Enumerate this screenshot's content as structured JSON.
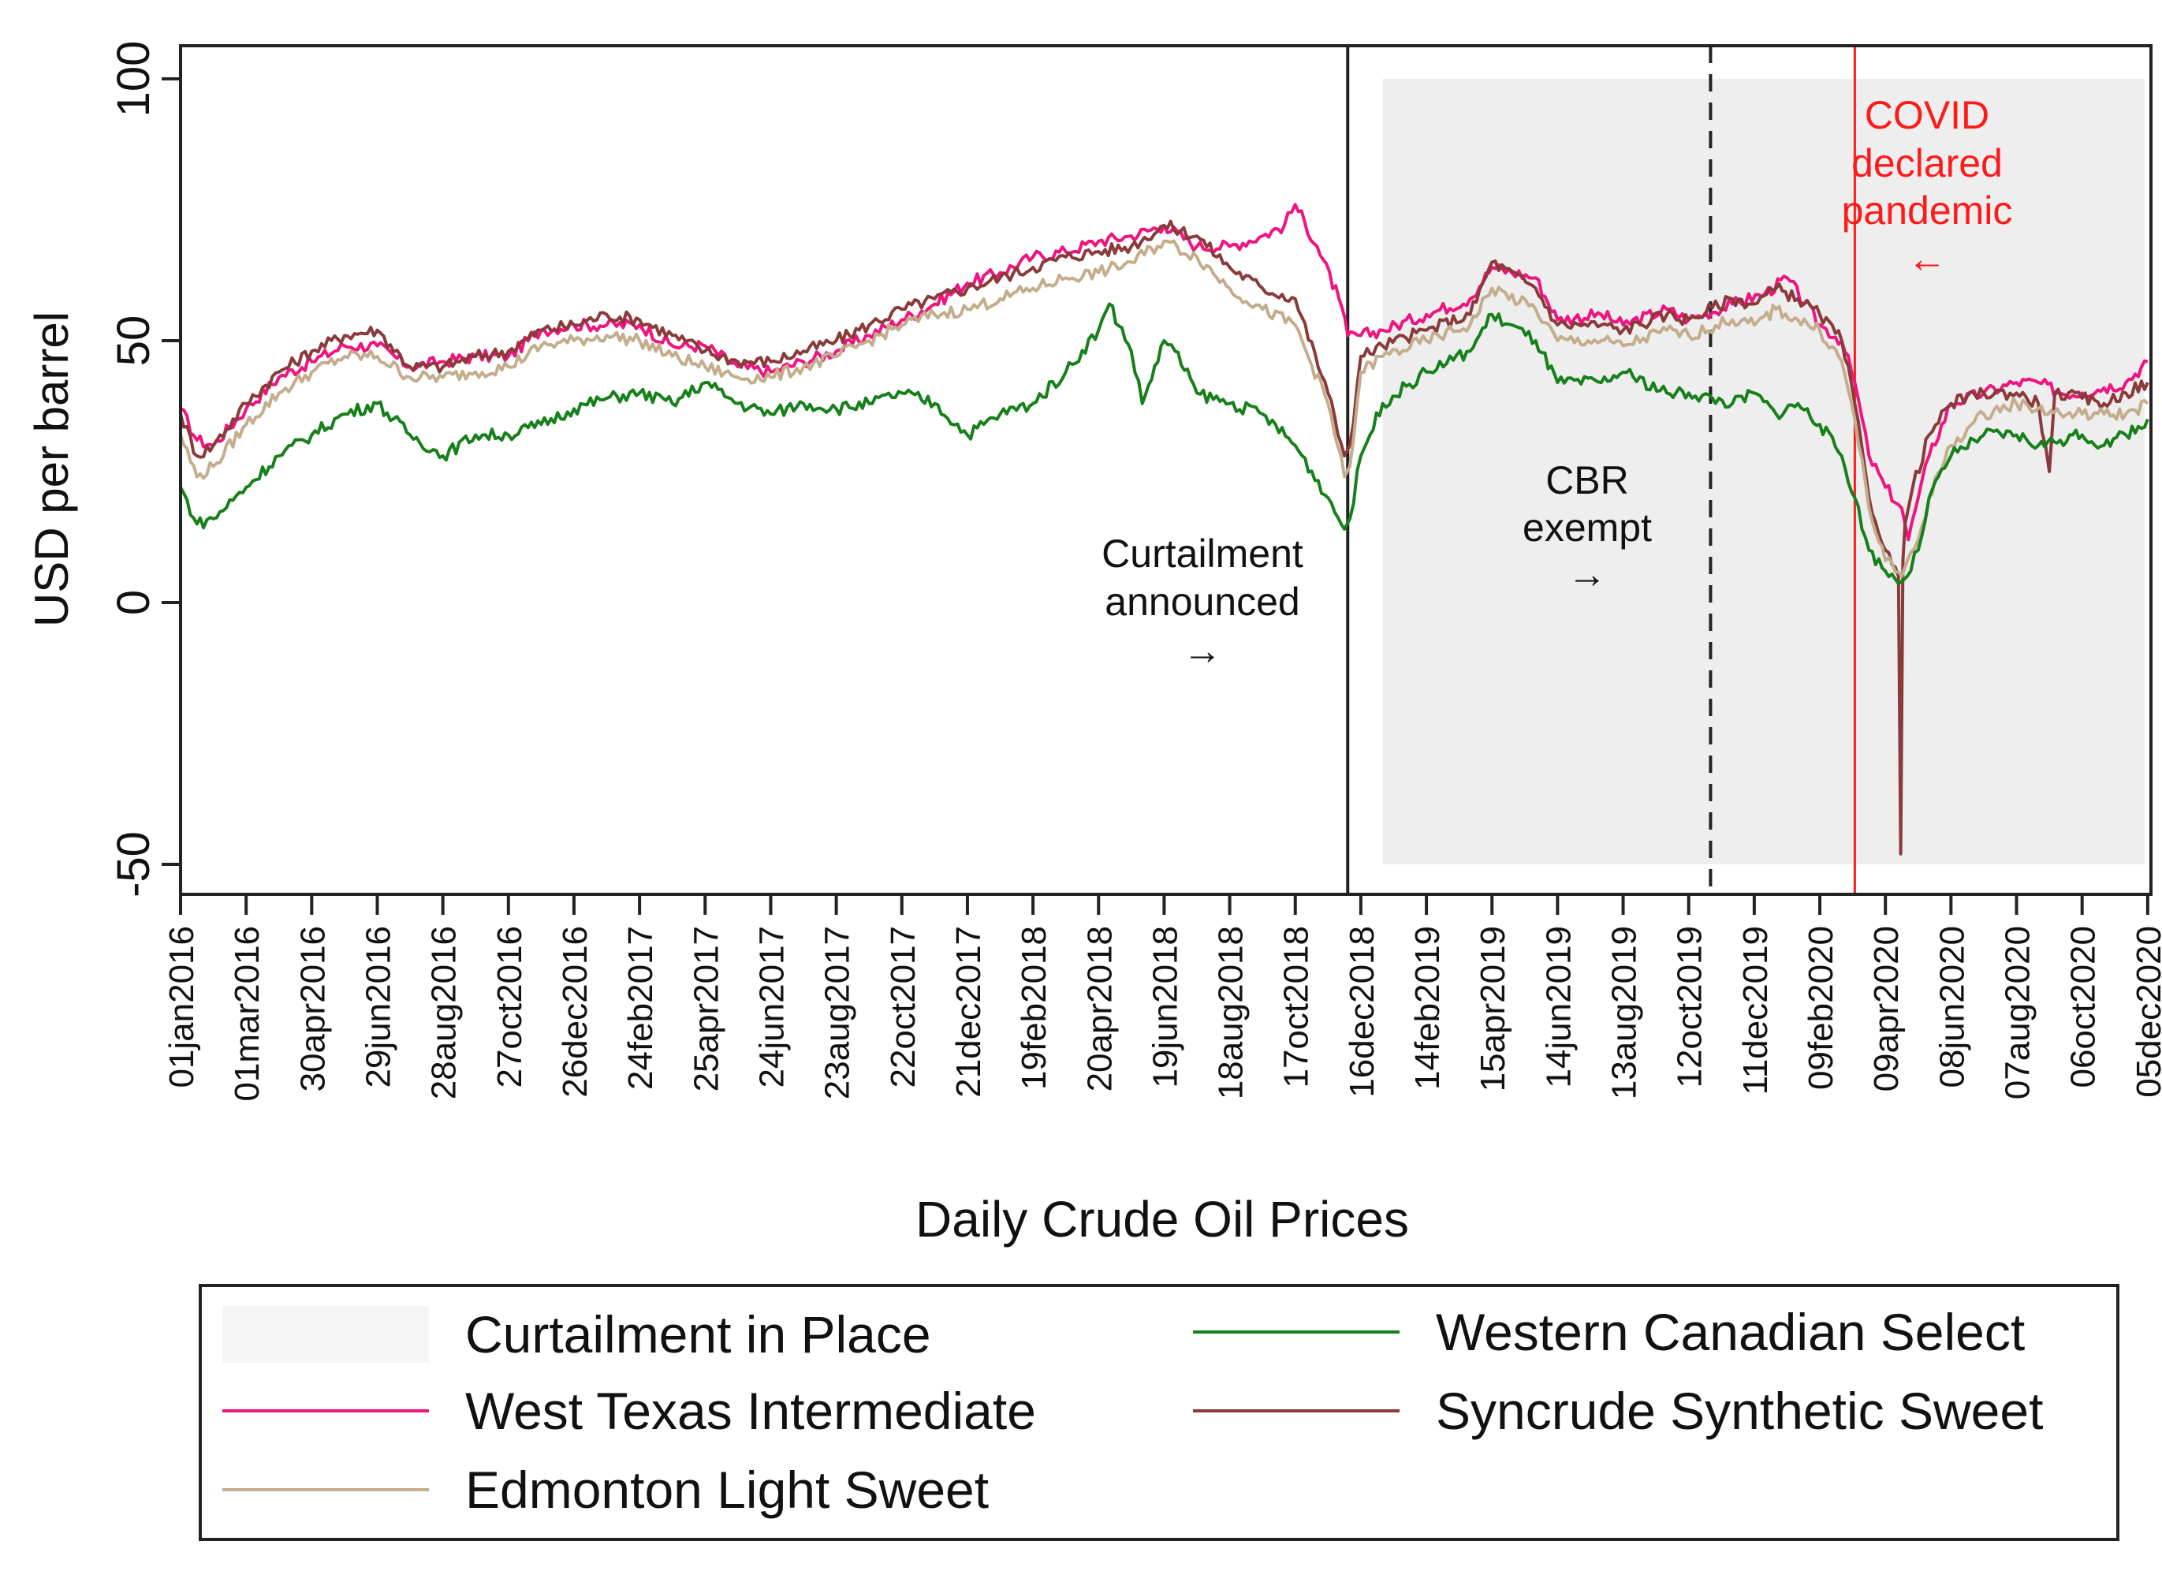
{
  "colors": {
    "wti": "#f0147f",
    "wcs": "#16801a",
    "syncrude": "#8b3a3a",
    "edmonton": "#c4ad8c",
    "covid": "#ff1a1a",
    "shade": "#eeeeee",
    "axis": "#222222"
  },
  "chart_data": {
    "type": "line",
    "title": "",
    "xlabel": "Daily Crude Oil Prices",
    "ylabel": "USD per barrel",
    "ylim": [
      -50,
      100
    ],
    "yticks": [
      "-50",
      "0",
      "50",
      "100"
    ],
    "x_range_days": [
      0,
      1803
    ],
    "xticks": [
      {
        "label": "01jan2016",
        "day": 0
      },
      {
        "label": "01mar2016",
        "day": 60
      },
      {
        "label": "30apr2016",
        "day": 120
      },
      {
        "label": "29jun2016",
        "day": 180
      },
      {
        "label": "28aug2016",
        "day": 240
      },
      {
        "label": "27oct2016",
        "day": 300
      },
      {
        "label": "26dec2016",
        "day": 360
      },
      {
        "label": "24feb2017",
        "day": 420
      },
      {
        "label": "25apr2017",
        "day": 480
      },
      {
        "label": "24jun2017",
        "day": 540
      },
      {
        "label": "23aug2017",
        "day": 600
      },
      {
        "label": "22oct2017",
        "day": 660
      },
      {
        "label": "21dec2017",
        "day": 720
      },
      {
        "label": "19feb2018",
        "day": 780
      },
      {
        "label": "20apr2018",
        "day": 840
      },
      {
        "label": "19jun2018",
        "day": 900
      },
      {
        "label": "18aug2018",
        "day": 960
      },
      {
        "label": "17oct2018",
        "day": 1020
      },
      {
        "label": "16dec2018",
        "day": 1080
      },
      {
        "label": "14feb2019",
        "day": 1140
      },
      {
        "label": "15apr2019",
        "day": 1200
      },
      {
        "label": "14jun2019",
        "day": 1260
      },
      {
        "label": "13aug2019",
        "day": 1320
      },
      {
        "label": "12oct2019",
        "day": 1380
      },
      {
        "label": "11dec2019",
        "day": 1440
      },
      {
        "label": "09feb2020",
        "day": 1500
      },
      {
        "label": "09apr2020",
        "day": 1560
      },
      {
        "label": "08jun2020",
        "day": 1620
      },
      {
        "label": "07aug2020",
        "day": 1680
      },
      {
        "label": "06oct2020",
        "day": 1740
      },
      {
        "label": "05dec2020",
        "day": 1800
      }
    ],
    "shaded_region": {
      "label": "Curtailment in Place",
      "x_start_day": 1100,
      "x_end_day": 1797,
      "y_range": [
        -50,
        100
      ]
    },
    "vertical_lines": [
      {
        "name": "curtailment",
        "day": 1068,
        "style": "solid",
        "color": "#222222"
      },
      {
        "name": "cbr",
        "day": 1400,
        "style": "dashed",
        "color": "#222222"
      },
      {
        "name": "covid",
        "day": 1532,
        "style": "solid",
        "color": "#ff1a1a"
      }
    ],
    "annotations": [
      {
        "lines": [
          "Curtailment",
          "announced"
        ],
        "arrow": "→",
        "color": "#111111"
      },
      {
        "lines": [
          "CBR",
          "exempt"
        ],
        "arrow": "→",
        "color": "#111111"
      },
      {
        "lines": [
          "COVID",
          "declared",
          "pandemic"
        ],
        "arrow": "←",
        "color": "#ff1a1a"
      }
    ],
    "series": [
      {
        "key": "wti",
        "name": "West Texas Intermediate",
        "x": [
          0,
          15,
          30,
          60,
          90,
          120,
          150,
          180,
          210,
          240,
          270,
          300,
          330,
          360,
          390,
          420,
          450,
          480,
          510,
          540,
          570,
          600,
          630,
          660,
          690,
          720,
          750,
          780,
          810,
          840,
          870,
          900,
          930,
          960,
          990,
          1010,
          1020,
          1040,
          1060,
          1068,
          1080,
          1100,
          1140,
          1180,
          1200,
          1240,
          1260,
          1300,
          1320,
          1360,
          1380,
          1420,
          1450,
          1470,
          1500,
          1520,
          1532,
          1545,
          1560,
          1575,
          1581,
          1590,
          1600,
          1620,
          1650,
          1680,
          1700,
          1720,
          1740,
          1760,
          1780,
          1800
        ],
        "values": [
          37,
          31,
          30,
          37,
          43,
          46,
          49,
          49,
          45,
          46,
          47,
          47,
          52,
          53,
          53,
          53,
          49,
          49,
          45,
          44,
          46,
          48,
          51,
          54,
          57,
          61,
          63,
          66,
          67,
          69,
          70,
          72,
          68,
          68,
          70,
          72,
          76,
          68,
          58,
          51,
          51,
          52,
          55,
          58,
          64,
          62,
          54,
          55,
          53,
          56,
          54,
          57,
          59,
          62,
          53,
          50,
          42,
          28,
          22,
          18,
          12,
          20,
          28,
          38,
          40,
          42,
          42,
          40,
          40,
          41,
          42,
          46
        ]
      },
      {
        "key": "syncrude",
        "name": "Syncrude Synthetic Sweet",
        "x": [
          0,
          15,
          30,
          60,
          90,
          120,
          150,
          180,
          210,
          240,
          270,
          300,
          330,
          360,
          390,
          420,
          450,
          480,
          510,
          540,
          570,
          600,
          630,
          660,
          690,
          720,
          750,
          780,
          810,
          840,
          870,
          900,
          930,
          960,
          990,
          1020,
          1050,
          1065,
          1070,
          1080,
          1100,
          1140,
          1180,
          1200,
          1240,
          1260,
          1300,
          1320,
          1360,
          1380,
          1420,
          1440,
          1460,
          1480,
          1500,
          1520,
          1532,
          1545,
          1560,
          1572,
          1574,
          1576,
          1578,
          1585,
          1600,
          1620,
          1650,
          1680,
          1700,
          1710,
          1715,
          1740,
          1760,
          1780,
          1800
        ],
        "values": [
          36,
          28,
          30,
          38,
          44,
          48,
          51,
          52,
          45,
          45,
          47,
          48,
          52,
          53,
          55,
          54,
          51,
          48,
          46,
          46,
          48,
          50,
          53,
          56,
          58,
          60,
          62,
          64,
          66,
          67,
          68,
          72,
          70,
          64,
          60,
          58,
          40,
          28,
          30,
          47,
          49,
          52,
          55,
          65,
          60,
          53,
          53,
          52,
          55,
          54,
          58,
          57,
          60,
          58,
          55,
          50,
          38,
          20,
          10,
          5,
          -48,
          8,
          15,
          22,
          32,
          38,
          40,
          40,
          38,
          25,
          40,
          39,
          38,
          40,
          42
        ]
      },
      {
        "key": "edmonton",
        "name": "Edmonton Light Sweet",
        "x": [
          0,
          15,
          30,
          60,
          90,
          120,
          150,
          180,
          210,
          240,
          270,
          300,
          330,
          360,
          390,
          420,
          450,
          480,
          510,
          540,
          570,
          600,
          630,
          660,
          690,
          720,
          750,
          780,
          810,
          840,
          870,
          900,
          930,
          960,
          990,
          1020,
          1050,
          1065,
          1070,
          1080,
          1100,
          1140,
          1180,
          1200,
          1240,
          1260,
          1300,
          1320,
          1360,
          1380,
          1420,
          1440,
          1460,
          1480,
          1500,
          1520,
          1532,
          1545,
          1560,
          1575,
          1580,
          1590,
          1600,
          1620,
          1650,
          1680,
          1700,
          1720,
          1740,
          1760,
          1780,
          1800
        ],
        "values": [
          32,
          24,
          26,
          34,
          40,
          44,
          47,
          47,
          43,
          43,
          44,
          45,
          49,
          50,
          51,
          50,
          47,
          45,
          43,
          43,
          45,
          47,
          50,
          53,
          55,
          56,
          58,
          60,
          62,
          63,
          65,
          69,
          66,
          60,
          56,
          53,
          38,
          24,
          26,
          44,
          47,
          50,
          53,
          60,
          56,
          50,
          50,
          49,
          52,
          51,
          54,
          53,
          56,
          54,
          52,
          46,
          35,
          18,
          8,
          5,
          8,
          12,
          20,
          30,
          36,
          38,
          37,
          36,
          36,
          36,
          36,
          38
        ]
      },
      {
        "key": "wcs",
        "name": "Western Canadian Select",
        "x": [
          0,
          15,
          30,
          60,
          90,
          120,
          150,
          180,
          210,
          240,
          270,
          300,
          330,
          360,
          390,
          420,
          450,
          480,
          510,
          540,
          570,
          600,
          630,
          660,
          690,
          720,
          750,
          780,
          810,
          840,
          850,
          870,
          880,
          900,
          910,
          930,
          960,
          990,
          1020,
          1050,
          1065,
          1070,
          1080,
          1100,
          1140,
          1180,
          1200,
          1240,
          1260,
          1300,
          1320,
          1360,
          1380,
          1420,
          1440,
          1460,
          1480,
          1500,
          1520,
          1532,
          1545,
          1560,
          1575,
          1580,
          1590,
          1600,
          1620,
          1650,
          1680,
          1700,
          1720,
          1740,
          1760,
          1780,
          1800
        ],
        "values": [
          22,
          15,
          16,
          22,
          28,
          32,
          36,
          38,
          32,
          28,
          32,
          32,
          34,
          37,
          39,
          40,
          38,
          42,
          38,
          36,
          38,
          37,
          38,
          40,
          38,
          32,
          36,
          38,
          44,
          52,
          57,
          48,
          38,
          50,
          48,
          40,
          38,
          36,
          30,
          20,
          14,
          16,
          28,
          38,
          44,
          48,
          55,
          50,
          42,
          42,
          44,
          40,
          40,
          38,
          40,
          36,
          38,
          34,
          28,
          20,
          10,
          6,
          4,
          5,
          10,
          20,
          28,
          32,
          32,
          30,
          31,
          32,
          30,
          32,
          35
        ]
      }
    ]
  },
  "legend": {
    "items": [
      {
        "key": "shade",
        "label": "Curtailment in Place"
      },
      {
        "key": "wti",
        "label": "West Texas Intermediate"
      },
      {
        "key": "edmonton",
        "label": "Edmonton Light Sweet"
      },
      {
        "key": "wcs",
        "label": "Western Canadian Select"
      },
      {
        "key": "syncrude",
        "label": "Syncrude Synthetic Sweet"
      }
    ]
  }
}
